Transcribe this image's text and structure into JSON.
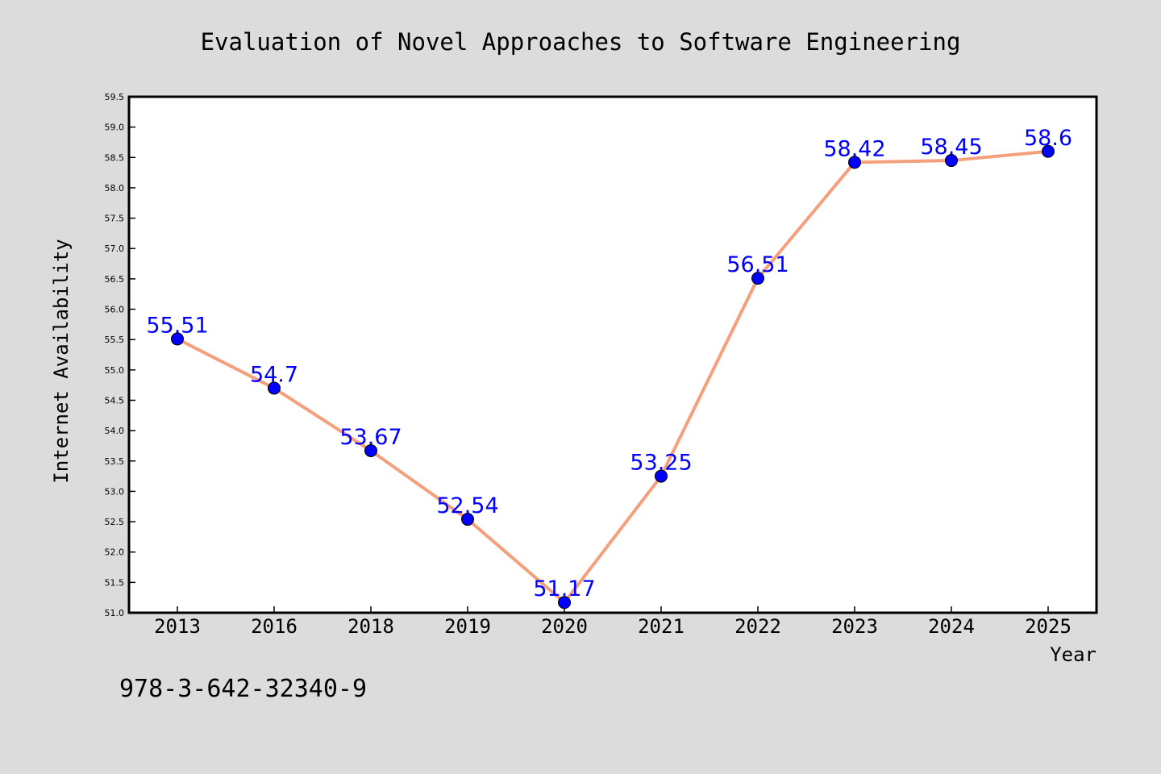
{
  "chart_data": {
    "type": "line",
    "title": "Evaluation of Novel Approaches to Software Engineering",
    "xlabel": "Year",
    "ylabel": "Internet Availability",
    "categories": [
      "2013",
      "2016",
      "2018",
      "2019",
      "2020",
      "2021",
      "2022",
      "2023",
      "2024",
      "2025"
    ],
    "series": [
      {
        "values": [
          55.51,
          54.7,
          53.67,
          52.54,
          51.17,
          53.25,
          56.51,
          58.42,
          58.45,
          58.6
        ],
        "data_labels": [
          "55.51",
          "54.7",
          "53.67",
          "52.54",
          "51.17",
          "53.25",
          "56.51",
          "58.42",
          "58.45",
          "58.6"
        ],
        "line_color": "#f4a07c",
        "marker_color": "#0000ff",
        "label_color": "#0000ff"
      }
    ],
    "ylim": [
      51.0,
      59.5
    ],
    "yticks": [
      "51.0",
      "51.5",
      "52.0",
      "52.5",
      "53.0",
      "53.5",
      "54.0",
      "54.5",
      "55.0",
      "55.5",
      "56.0",
      "56.5",
      "57.0",
      "57.5",
      "58.0",
      "58.5",
      "59.0",
      "59.5"
    ],
    "grid": false,
    "background_color": "#dcdcdc",
    "plot_background_color": "#ffffff"
  },
  "annotation": "978-3-642-32340-9"
}
